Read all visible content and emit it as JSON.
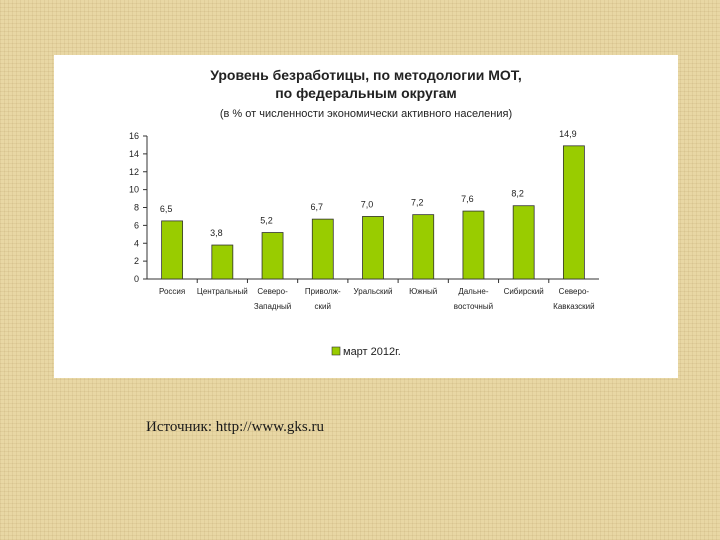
{
  "source": "Источник: http://www.gks.ru",
  "chart_data": {
    "type": "bar",
    "title_line1": "Уровень безработицы, по методологии МОТ,",
    "title_line2": "по федеральным округам",
    "subtitle": "(в % от численности экономически активного населения)",
    "categories": [
      [
        "Россия"
      ],
      [
        "Центральный"
      ],
      [
        "Северо-",
        "Западный"
      ],
      [
        "Приволж-",
        "ский"
      ],
      [
        "Уральский"
      ],
      [
        "Южный"
      ],
      [
        "Дальне-",
        "восточный"
      ],
      [
        "Сибирский"
      ],
      [
        "Северо-",
        "Кавказский"
      ]
    ],
    "series": [
      {
        "name": "март 2012г.",
        "values": [
          6.5,
          3.8,
          5.2,
          6.7,
          7.0,
          7.2,
          7.6,
          8.2,
          14.9
        ],
        "labels": [
          "6,5",
          "3,8",
          "5,2",
          "6,7",
          "7,0",
          "7,2",
          "7,6",
          "8,2",
          "14,9"
        ],
        "color": "#99cc00"
      }
    ],
    "ylim": [
      0,
      16
    ],
    "yticks": [
      0,
      2,
      4,
      6,
      8,
      10,
      12,
      14,
      16
    ],
    "grid": false,
    "legend": "bottom"
  }
}
